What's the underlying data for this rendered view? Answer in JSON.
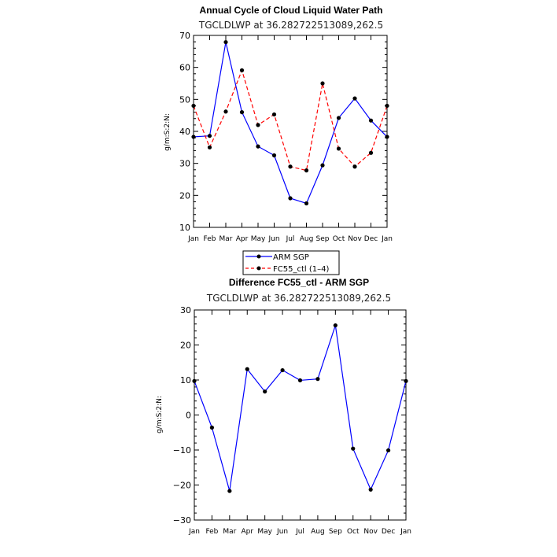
{
  "chart_data": [
    {
      "type": "line",
      "title": "Annual Cycle of Cloud Liquid Water Path",
      "subtitle": "TGCLDLWP at 36.282722513089,262.5",
      "ylabel": "g/m:S:2:N:",
      "xlabel": "",
      "categories": [
        "Jan",
        "Feb",
        "Mar",
        "Apr",
        "May",
        "Jun",
        "Jul",
        "Aug",
        "Sep",
        "Oct",
        "Nov",
        "Dec",
        "Jan"
      ],
      "ylim": [
        10,
        70
      ],
      "yticks": [
        10,
        20,
        30,
        40,
        50,
        60,
        70
      ],
      "series": [
        {
          "name": "ARM SGP",
          "color": "#0000ff",
          "dash": "solid",
          "values": [
            38.3,
            38.6,
            67.9,
            46.0,
            35.3,
            32.5,
            19.1,
            17.5,
            29.4,
            44.2,
            50.3,
            43.4,
            38.3
          ]
        },
        {
          "name": "FC55_ctl (1-4)",
          "color": "#ff0000",
          "dash": "dashed",
          "values": [
            48.0,
            35.0,
            46.2,
            59.1,
            42.0,
            45.3,
            29.0,
            27.8,
            55.0,
            34.6,
            29.0,
            33.3,
            48.0
          ]
        }
      ],
      "legend": {
        "placement": "below-plot",
        "entries": [
          "ARM SGP",
          "FC55_ctl (1–4)"
        ]
      }
    },
    {
      "type": "line",
      "title": "Difference FC55_ctl - ARM SGP",
      "subtitle": "TGCLDLWP at 36.282722513089,262.5",
      "ylabel": "g/m:S:2:N:",
      "xlabel": "",
      "categories": [
        "Jan",
        "Feb",
        "Mar",
        "Apr",
        "May",
        "Jun",
        "Jul",
        "Aug",
        "Sep",
        "Oct",
        "Nov",
        "Dec",
        "Jan"
      ],
      "ylim": [
        -30,
        30
      ],
      "yticks": [
        -30,
        -20,
        -10,
        0,
        10,
        20,
        30
      ],
      "ytick_labels": [
        "−30",
        "−20",
        "−10",
        "0",
        "10",
        "20",
        "30"
      ],
      "series": [
        {
          "name": "Difference",
          "color": "#0000ff",
          "dash": "solid",
          "values": [
            9.7,
            -3.6,
            -21.7,
            13.1,
            6.7,
            12.8,
            9.9,
            10.3,
            25.6,
            -9.6,
            -21.3,
            -10.1,
            9.7
          ]
        }
      ]
    }
  ]
}
